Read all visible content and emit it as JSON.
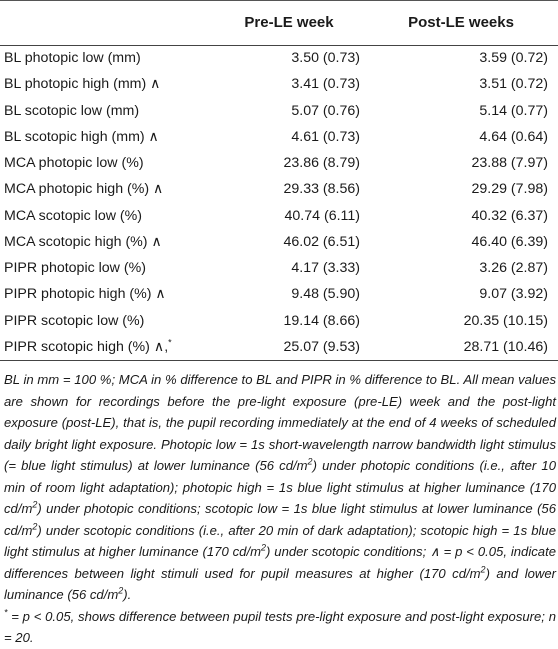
{
  "table": {
    "headers": [
      "",
      "Pre-LE week",
      "Post-LE weeks"
    ],
    "rows": [
      {
        "label": "BL photopic low (mm)",
        "pre": "3.50 (0.73)",
        "post": "3.59 (0.72)"
      },
      {
        "label": "BL photopic high (mm) ∧",
        "pre": "3.41 (0.73)",
        "post": "3.51 (0.72)"
      },
      {
        "label": "BL scotopic low (mm)",
        "pre": "5.07 (0.76)",
        "post": "5.14 (0.77)"
      },
      {
        "label": "BL scotopic high (mm) ∧",
        "pre": "4.61 (0.73)",
        "post": "4.64 (0.64)"
      },
      {
        "label": "MCA photopic low (%)",
        "pre": "23.86 (8.79)",
        "post": "23.88 (7.97)"
      },
      {
        "label": "MCA photopic high (%) ∧",
        "pre": "29.33 (8.56)",
        "post": "29.29 (7.98)"
      },
      {
        "label": "MCA scotopic low (%)",
        "pre": "40.74 (6.11)",
        "post": "40.32 (6.37)"
      },
      {
        "label": "MCA scotopic high (%) ∧",
        "pre": "46.02 (6.51)",
        "post": "46.40 (6.39)"
      },
      {
        "label": "PIPR photopic low (%)",
        "pre": "4.17 (3.33)",
        "post": "3.26 (2.87)"
      },
      {
        "label": "PIPR photopic high (%) ∧",
        "pre": "9.48 (5.90)",
        "post": "9.07 (3.92)"
      },
      {
        "label": "PIPR scotopic low (%)",
        "pre": "19.14 (8.66)",
        "post": "20.35 (10.15)"
      },
      {
        "label": "PIPR scotopic high (%) ∧,",
        "label_sup": "*",
        "pre": "25.07 (9.53)",
        "post": "28.71 (10.46)"
      }
    ]
  },
  "footnote": {
    "p1": "BL in mm = 100 %; MCA in % difference to BL and PIPR in % difference to BL. All mean values are shown for recordings before the pre-light exposure (pre-LE) week and the post-light exposure (post-LE), that is, the pupil recording immediately at the end of 4 weeks of scheduled daily bright light exposure. Photopic low = 1s short-wavelength narrow bandwidth light stimulus (= blue light stimulus) at lower luminance (56 cd/m",
    "sup2": "2",
    "p2": ") under photopic conditions (i.e., after 10 min of room light adaptation); photopic high = 1s blue light stimulus at higher luminance (170 cd/m",
    "p3": ") under photopic conditions; scotopic low = 1s blue light stimulus at lower luminance (56 cd/m",
    "p4": ") under scotopic conditions (i.e., after 20 min of dark adaptation); scotopic high = 1s blue light stimulus at higher luminance (170 cd/m",
    "p5": ") under scotopic conditions; ∧ = p < 0.05, indicate differences between light stimuli used for pupil measures at higher (170 cd/m",
    "p6": ") and lower luminance (56 cd/m",
    "p7": ").",
    "star": "*",
    "p8": " = p < 0.05, shows difference between pupil tests pre-light exposure and post-light exposure; n = 20."
  }
}
